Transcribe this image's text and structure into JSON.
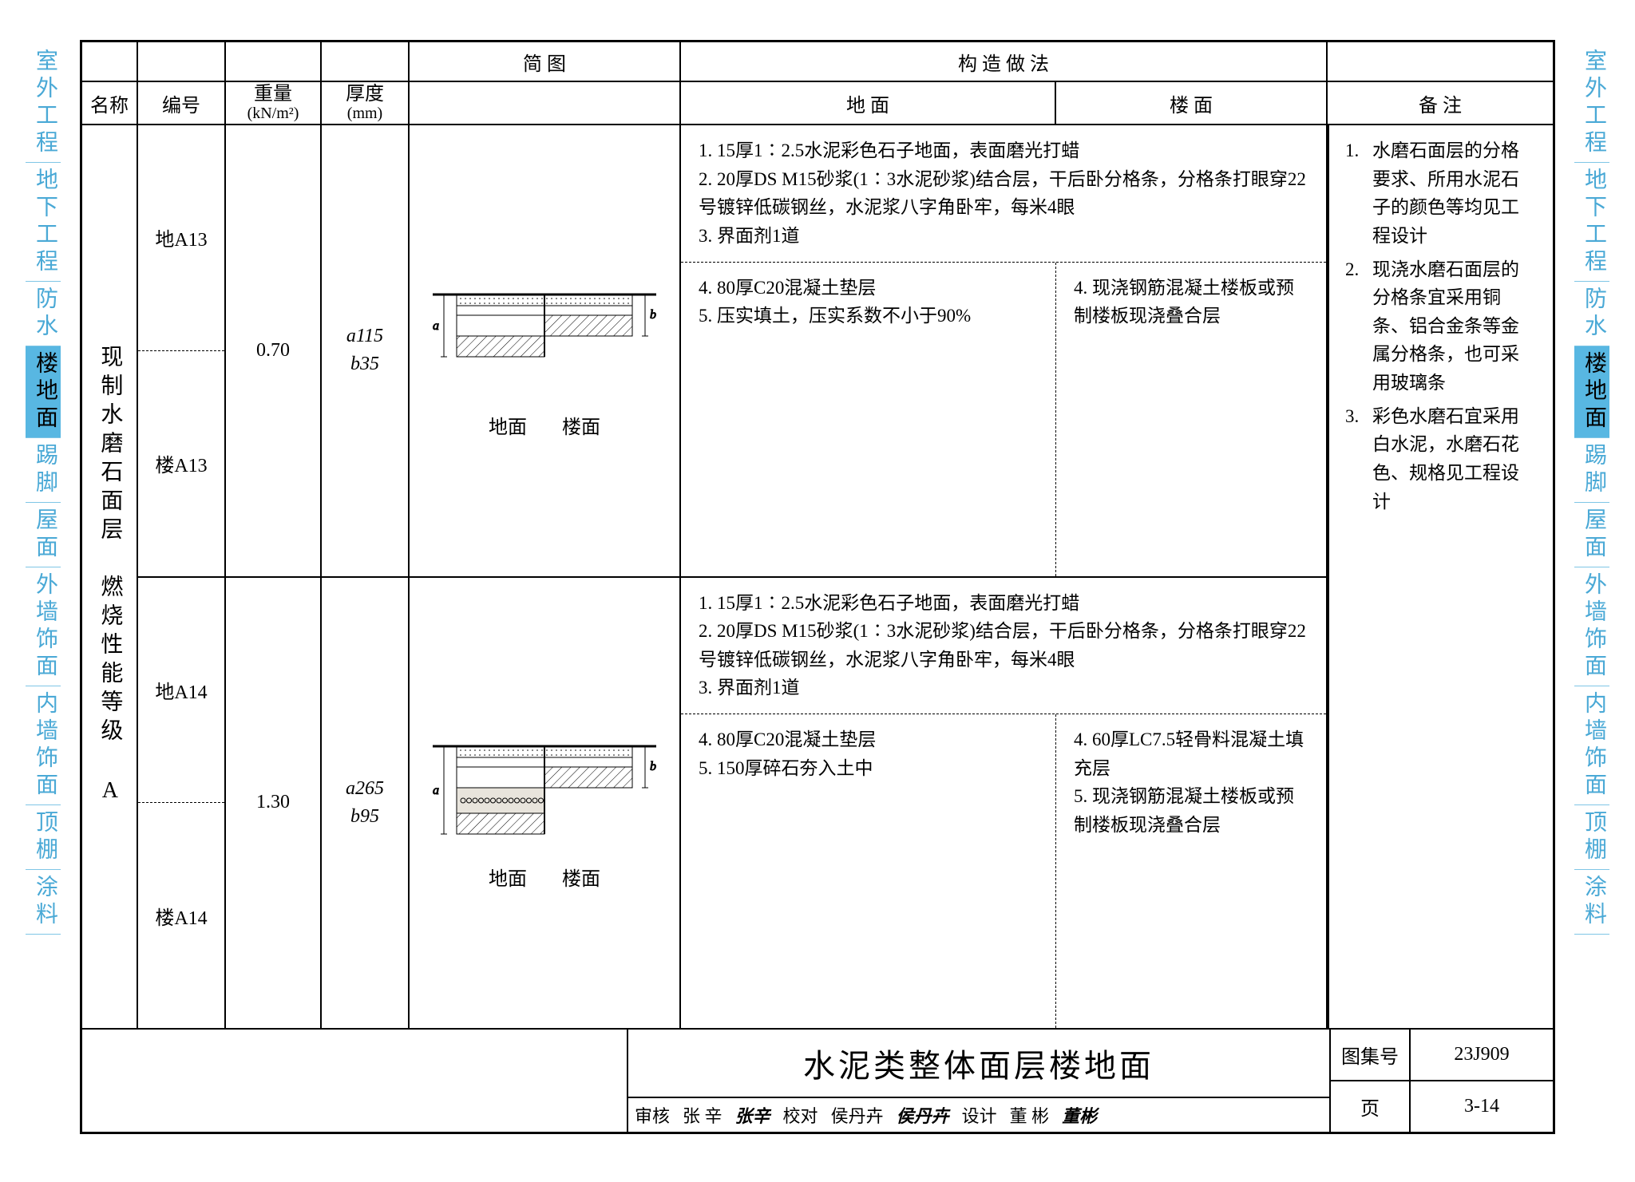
{
  "colors": {
    "tab_blue": "#4aa9d6",
    "tab_active_bg": "#58b7e2",
    "border": "#000000",
    "background": "#ffffff"
  },
  "side_tabs": [
    {
      "label": "室外工程",
      "cls": "blue"
    },
    {
      "label": "地下工程",
      "cls": "blue"
    },
    {
      "label": "防水",
      "cls": "blue"
    },
    {
      "label": "楼地面",
      "cls": "active"
    },
    {
      "label": "踢脚",
      "cls": "blue"
    },
    {
      "label": "屋面",
      "cls": "blue"
    },
    {
      "label": "外墙饰面",
      "cls": "blue"
    },
    {
      "label": "内墙饰面",
      "cls": "blue"
    },
    {
      "label": "顶棚",
      "cls": "blue"
    },
    {
      "label": "涂料",
      "cls": "blue"
    }
  ],
  "header": {
    "name": "名称",
    "code": "编号",
    "weight": "重量",
    "weight_unit": "(kN/m²)",
    "thick": "厚度",
    "thick_unit": "(mm)",
    "diagram": "简 图",
    "construction": "构 造 做 法",
    "ground": "地 面",
    "floor": "楼 面",
    "note": "备 注"
  },
  "row_name": "现制水磨石面层　燃烧性能等级 A",
  "rows": [
    {
      "code_ground": "地A13",
      "code_floor": "楼A13",
      "weight": "0.70",
      "thick_a": "a115",
      "thick_b": "b35",
      "diag_ground": "地面",
      "diag_floor": "楼面",
      "shared": [
        "1. 15厚1∶2.5水泥彩色石子地面，表面磨光打蜡",
        "2. 20厚DS M15砂浆(1∶3水泥砂浆)结合层，干后卧分格条，分格条打眼穿22号镀锌低碳钢丝，水泥浆八字角卧牢，每米4眼",
        "3. 界面剂1道"
      ],
      "ground": [
        "4. 80厚C20混凝土垫层",
        "5. 压实填土，压实系数不小于90%"
      ],
      "floor": [
        "4. 现浇钢筋混凝土楼板或预制楼板现浇叠合层"
      ]
    },
    {
      "code_ground": "地A14",
      "code_floor": "楼A14",
      "weight": "1.30",
      "thick_a": "a265",
      "thick_b": "b95",
      "diag_ground": "地面",
      "diag_floor": "楼面",
      "shared": [
        "1. 15厚1∶2.5水泥彩色石子地面，表面磨光打蜡",
        "2. 20厚DS M15砂浆(1∶3水泥砂浆)结合层，干后卧分格条，分格条打眼穿22号镀锌低碳钢丝，水泥浆八字角卧牢，每米4眼",
        "3. 界面剂1道"
      ],
      "ground": [
        "4. 80厚C20混凝土垫层",
        "5. 150厚碎石夯入土中"
      ],
      "floor": [
        "4. 60厚LC7.5轻骨料混凝土填充层",
        "5. 现浇钢筋混凝土楼板或预制楼板现浇叠合层"
      ]
    }
  ],
  "notes": [
    {
      "n": "1.",
      "t": "水磨石面层的分格要求、所用水泥石子的颜色等均见工程设计"
    },
    {
      "n": "2.",
      "t": "现浇水磨石面层的分格条宜采用铜条、铝合金条等金属分格条，也可采用玻璃条"
    },
    {
      "n": "3.",
      "t": "彩色水磨石宜采用白水泥，水磨石花色、规格见工程设计"
    }
  ],
  "title_block": {
    "title": "水泥类整体面层楼地面",
    "set_label": "图集号",
    "set_no": "23J909",
    "page_label": "页",
    "page_no": "3-14",
    "review_lab": "审核",
    "review_name": "张 辛",
    "review_sig": "张辛",
    "check_lab": "校对",
    "check_name": "侯丹卉",
    "check_sig": "侯丹卉",
    "design_lab": "设计",
    "design_name": "董 彬",
    "design_sig": "董彬"
  }
}
